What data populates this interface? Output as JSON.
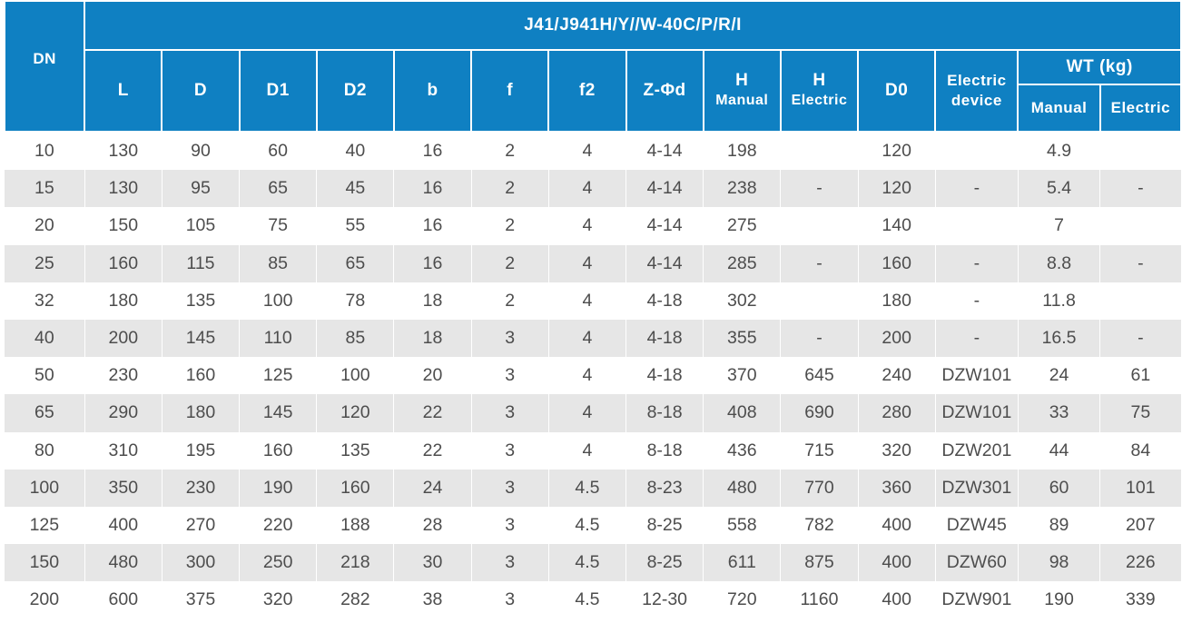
{
  "table": {
    "title": "J41/J941H/Y//W-40C/P/R/I",
    "dn_label": "DN",
    "columns": {
      "L": "L",
      "D": "D",
      "D1": "D1",
      "D2": "D2",
      "b": "b",
      "f": "f",
      "f2": "f2",
      "z_phi_d": "Z-Φd",
      "h_manual_top": "H",
      "h_manual_bottom": "Manual",
      "h_electric_top": "H",
      "h_electric_bottom": "Electric",
      "D0": "D0",
      "electric_device_line1": "Electric",
      "electric_device_line2": "device",
      "wt": "WT (kg)",
      "wt_manual": "Manual",
      "wt_electric": "Electric"
    },
    "rows": [
      [
        "10",
        "130",
        "90",
        "60",
        "40",
        "16",
        "2",
        "4",
        "4-14",
        "198",
        "",
        "120",
        "",
        "4.9",
        ""
      ],
      [
        "15",
        "130",
        "95",
        "65",
        "45",
        "16",
        "2",
        "4",
        "4-14",
        "238",
        "-",
        "120",
        "-",
        "5.4",
        "-"
      ],
      [
        "20",
        "150",
        "105",
        "75",
        "55",
        "16",
        "2",
        "4",
        "4-14",
        "275",
        "",
        "140",
        "",
        "7",
        ""
      ],
      [
        "25",
        "160",
        "115",
        "85",
        "65",
        "16",
        "2",
        "4",
        "4-14",
        "285",
        "-",
        "160",
        "-",
        "8.8",
        "-"
      ],
      [
        "32",
        "180",
        "135",
        "100",
        "78",
        "18",
        "2",
        "4",
        "4-18",
        "302",
        "",
        "180",
        "-",
        "11.8",
        ""
      ],
      [
        "40",
        "200",
        "145",
        "110",
        "85",
        "18",
        "3",
        "4",
        "4-18",
        "355",
        "-",
        "200",
        "-",
        "16.5",
        "-"
      ],
      [
        "50",
        "230",
        "160",
        "125",
        "100",
        "20",
        "3",
        "4",
        "4-18",
        "370",
        "645",
        "240",
        "DZW101",
        "24",
        "61"
      ],
      [
        "65",
        "290",
        "180",
        "145",
        "120",
        "22",
        "3",
        "4",
        "8-18",
        "408",
        "690",
        "280",
        "DZW101",
        "33",
        "75"
      ],
      [
        "80",
        "310",
        "195",
        "160",
        "135",
        "22",
        "3",
        "4",
        "8-18",
        "436",
        "715",
        "320",
        "DZW201",
        "44",
        "84"
      ],
      [
        "100",
        "350",
        "230",
        "190",
        "160",
        "24",
        "3",
        "4.5",
        "8-23",
        "480",
        "770",
        "360",
        "DZW301",
        "60",
        "101"
      ],
      [
        "125",
        "400",
        "270",
        "220",
        "188",
        "28",
        "3",
        "4.5",
        "8-25",
        "558",
        "782",
        "400",
        "DZW45",
        "89",
        "207"
      ],
      [
        "150",
        "480",
        "300",
        "250",
        "218",
        "30",
        "3",
        "4.5",
        "8-25",
        "611",
        "875",
        "400",
        "DZW60",
        "98",
        "226"
      ],
      [
        "200",
        "600",
        "375",
        "320",
        "282",
        "38",
        "3",
        "4.5",
        "12-30",
        "720",
        "1160",
        "400",
        "DZW901",
        "190",
        "339"
      ]
    ]
  }
}
